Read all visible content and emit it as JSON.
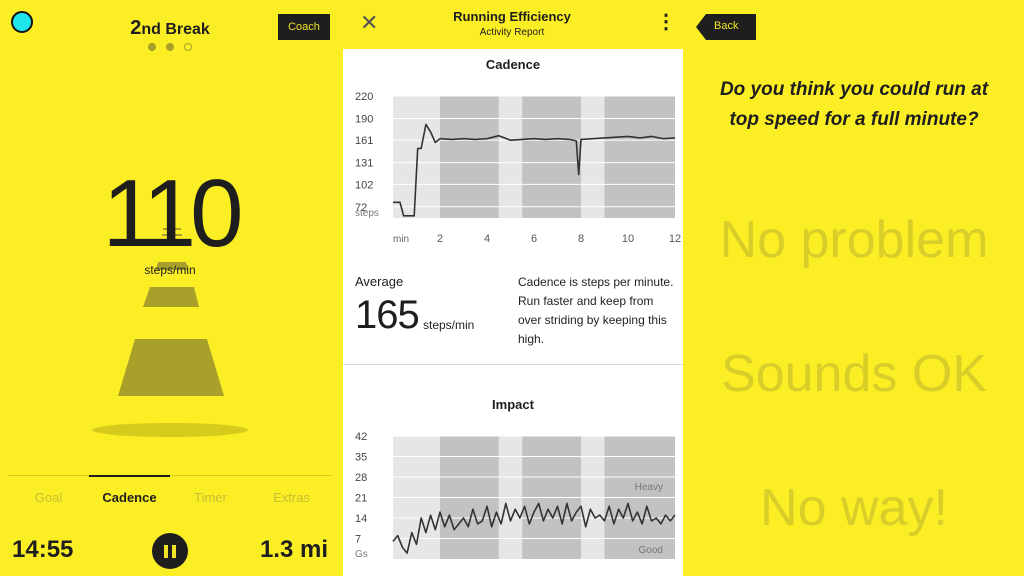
{
  "left": {
    "title_number": "2",
    "title_suffix": "nd Break",
    "coach_label": "Coach",
    "cadence_value": "110",
    "cadence_unit": "steps/min",
    "tabs": [
      {
        "label": "Goal",
        "active": false
      },
      {
        "label": "Cadence",
        "active": true
      },
      {
        "label": "Timer",
        "active": false
      },
      {
        "label": "Extras",
        "active": false
      }
    ],
    "time": "14:55",
    "distance": "1.3 mi",
    "page_indicator": {
      "count": 3,
      "current": 1
    }
  },
  "middle": {
    "title": "Running Efficiency",
    "subtitle": "Activity Report",
    "close_icon": "close-icon",
    "menu_icon": "kebab-menu-icon",
    "average_label": "Average",
    "average_value": "165",
    "average_unit": "steps/min",
    "description": "Cadence is steps per minute. Run faster and keep from over striding by keeping this high."
  },
  "chart_data": [
    {
      "type": "line",
      "title": "Cadence",
      "ylabel": "steps",
      "xlabel": "min",
      "yticks": [
        72,
        102,
        131,
        161,
        190,
        220
      ],
      "xticks": [
        2,
        4,
        6,
        8,
        10,
        12
      ],
      "xlim": [
        0,
        12
      ],
      "ylim": [
        57,
        220
      ],
      "shaded_intervals": [
        [
          2,
          4.5
        ],
        [
          5.5,
          8
        ],
        [
          9,
          12
        ]
      ],
      "series": [
        {
          "x": [
            0,
            0.3,
            0.45,
            0.6,
            0.9,
            1.05,
            1.2,
            1.4,
            1.6,
            1.8,
            2.0,
            2.5,
            3.0,
            3.5,
            4.0,
            4.5,
            5.0,
            5.5,
            6.0,
            6.5,
            7.0,
            7.5,
            7.8,
            7.9,
            8.0,
            8.5,
            9.0,
            9.5,
            10.0,
            10.5,
            11.0,
            11.5,
            12.0
          ],
          "values": [
            78,
            78,
            60,
            60,
            60,
            150,
            150,
            182,
            172,
            158,
            163,
            162,
            163,
            162,
            163,
            167,
            161,
            162,
            163,
            162,
            163,
            162,
            160,
            115,
            162,
            163,
            164,
            165,
            166,
            164,
            166,
            163,
            164
          ]
        }
      ]
    },
    {
      "type": "line",
      "title": "Impact",
      "ylabel": "Gs",
      "yticks": [
        7,
        14,
        21,
        28,
        35,
        42
      ],
      "xlim": [
        0,
        12
      ],
      "ylim": [
        0,
        42
      ],
      "shaded_intervals": [
        [
          2,
          4.5
        ],
        [
          5.5,
          8
        ],
        [
          9,
          12
        ]
      ],
      "annotations": [
        "Heavy",
        "Good"
      ],
      "series": [
        {
          "x": [
            0,
            0.2,
            0.4,
            0.6,
            0.8,
            1.0,
            1.2,
            1.4,
            1.6,
            1.8,
            2.0,
            2.2,
            2.4,
            2.6,
            2.8,
            3.0,
            3.2,
            3.4,
            3.6,
            3.8,
            4.0,
            4.2,
            4.4,
            4.6,
            4.8,
            5.0,
            5.2,
            5.4,
            5.6,
            5.8,
            6.0,
            6.2,
            6.4,
            6.6,
            6.8,
            7.0,
            7.2,
            7.4,
            7.6,
            7.8,
            8.0,
            8.2,
            8.4,
            8.6,
            8.8,
            9.0,
            9.2,
            9.4,
            9.6,
            9.8,
            10.0,
            10.2,
            10.4,
            10.6,
            10.8,
            11.0,
            11.2,
            11.4,
            11.6,
            11.8,
            12.0
          ],
          "values": [
            6,
            8,
            4,
            2,
            9,
            5,
            14,
            9,
            15,
            10,
            16,
            11,
            15,
            10,
            12,
            14,
            11,
            17,
            12,
            13,
            18,
            11,
            16,
            12,
            19,
            13,
            17,
            14,
            18,
            12,
            16,
            19,
            13,
            17,
            14,
            18,
            12,
            19,
            13,
            16,
            18,
            11,
            17,
            14,
            15,
            13,
            18,
            12,
            17,
            14,
            19,
            13,
            16,
            12,
            18,
            13,
            14,
            12,
            15,
            13,
            15
          ]
        }
      ]
    }
  ],
  "right": {
    "back_label": "Back",
    "question": "Do you think you could run at top speed for a full minute?",
    "answers": [
      "No problem",
      "Sounds OK",
      "No way!"
    ]
  }
}
